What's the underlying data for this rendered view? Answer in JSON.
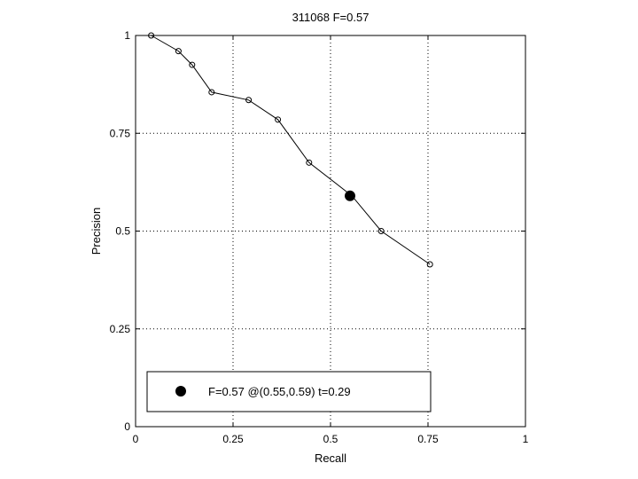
{
  "chart_data": {
    "type": "line",
    "title": "311068 F=0.57",
    "xlabel": "Recall",
    "ylabel": "Precision",
    "xlim": [
      0,
      1
    ],
    "ylim": [
      0,
      1
    ],
    "x_ticks": [
      0,
      0.25,
      0.5,
      0.75,
      1
    ],
    "x_tick_labels": [
      "0",
      "0.25",
      "0.5",
      "0.75",
      "1"
    ],
    "y_ticks": [
      0,
      0.25,
      0.5,
      0.75,
      1
    ],
    "y_tick_labels": [
      "0",
      "0.25",
      "0.5",
      "0.75",
      "1"
    ],
    "grid": true,
    "series": [
      {
        "marker": "open-circle",
        "color": "#000000",
        "x": [
          0.04,
          0.11,
          0.145,
          0.195,
          0.29,
          0.365,
          0.445,
          0.555,
          0.63,
          0.755
        ],
        "y": [
          1.0,
          0.96,
          0.925,
          0.855,
          0.835,
          0.785,
          0.675,
          0.59,
          0.5,
          0.415
        ]
      }
    ],
    "best_point": {
      "x": 0.55,
      "y": 0.59,
      "marker": "filled-circle",
      "color": "#000000"
    },
    "legend": {
      "placement": "bottom-left",
      "entries": [
        {
          "label": "F=0.57 @(0.55,0.59) t=0.29",
          "marker": "filled-circle"
        }
      ]
    }
  }
}
